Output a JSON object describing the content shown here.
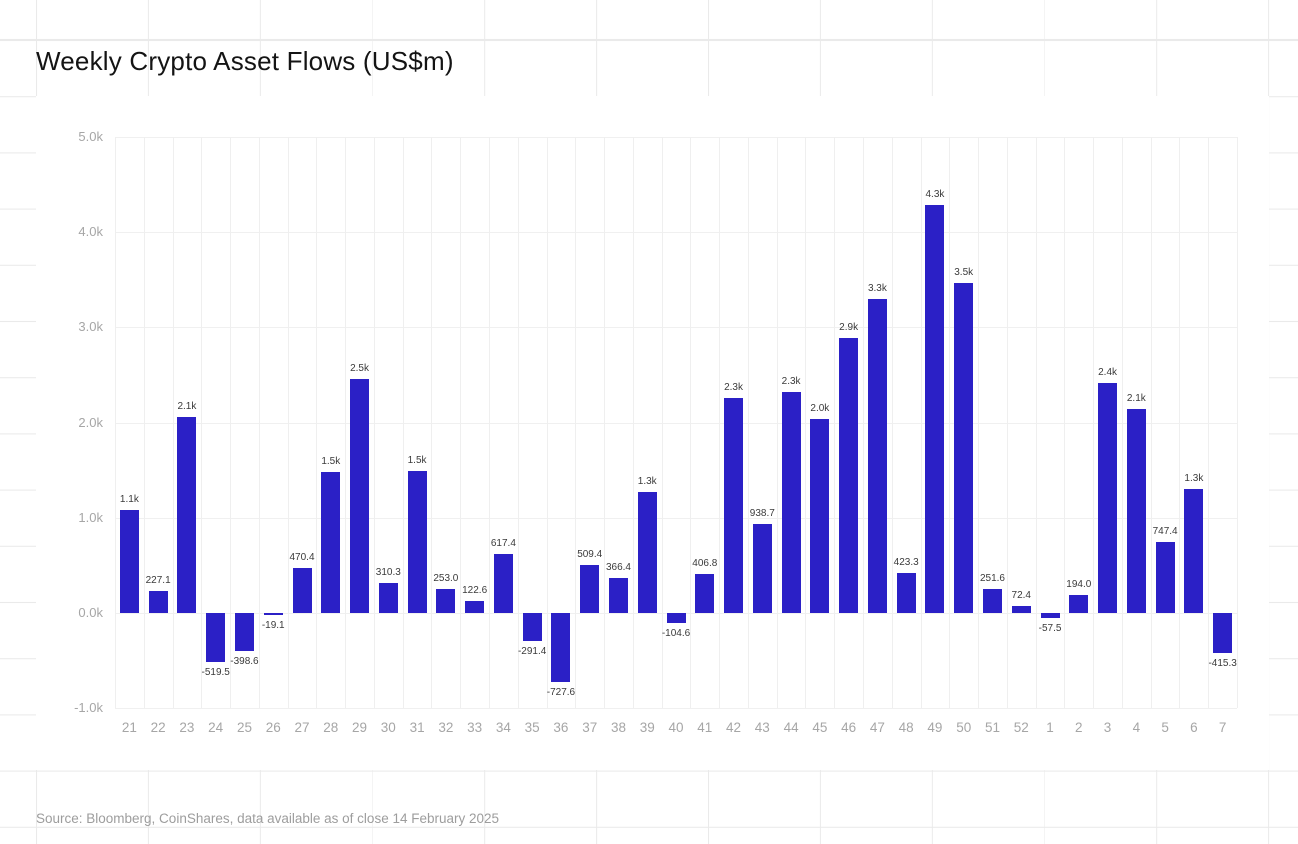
{
  "header": {
    "title": "Weekly Crypto Asset Flows (US$m)"
  },
  "footer": {
    "source": "Source: Bloomberg, CoinShares, data available as of close 14 February 2025"
  },
  "chart_data": {
    "type": "bar",
    "title": "Weekly Crypto Asset Flows (US$m)",
    "xlabel": "",
    "ylabel": "",
    "ylim": [
      -1000,
      5000
    ],
    "grid": true,
    "legend_position": "none",
    "bar_color": "#2b20c6",
    "categories": [
      "21",
      "22",
      "23",
      "24",
      "25",
      "26",
      "27",
      "28",
      "29",
      "30",
      "31",
      "32",
      "33",
      "34",
      "35",
      "36",
      "37",
      "38",
      "39",
      "40",
      "41",
      "42",
      "43",
      "44",
      "45",
      "46",
      "47",
      "48",
      "49",
      "50",
      "51",
      "52",
      "1",
      "2",
      "3",
      "4",
      "5",
      "6",
      "7"
    ],
    "values": [
      1080,
      227.1,
      2060,
      -519.5,
      -398.6,
      -19.1,
      470.4,
      1480,
      2460,
      310.3,
      1490,
      253.0,
      122.6,
      617.4,
      -291.4,
      -727.6,
      509.4,
      366.4,
      1270,
      -104.6,
      406.8,
      2260,
      938.7,
      2320,
      2040,
      2890,
      3300,
      423.3,
      4290,
      3470,
      251.6,
      72.4,
      -57.5,
      194.0,
      2420,
      2140,
      747.4,
      1300,
      -415.3
    ],
    "bar_labels": [
      "1.1k",
      "227.1",
      "2.1k",
      "-519.5",
      "-398.6",
      "-19.1",
      "470.4",
      "1.5k",
      "2.5k",
      "310.3",
      "1.5k",
      "253.0",
      "122.6",
      "617.4",
      "-291.4",
      "-727.6",
      "509.4",
      "366.4",
      "1.3k",
      "-104.6",
      "406.8",
      "2.3k",
      "938.7",
      "2.3k",
      "2.0k",
      "2.9k",
      "3.3k",
      "423.3",
      "4.3k",
      "3.5k",
      "251.6",
      "72.4",
      "-57.5",
      "194.0",
      "2.4k",
      "2.1k",
      "747.4",
      "1.3k",
      "-415.3"
    ],
    "yticks": [
      {
        "value": 5000,
        "label": "5.0k"
      },
      {
        "value": 4000,
        "label": "4.0k"
      },
      {
        "value": 3000,
        "label": "3.0k"
      },
      {
        "value": 2000,
        "label": "2.0k"
      },
      {
        "value": 1000,
        "label": "1.0k"
      },
      {
        "value": 0,
        "label": "0.0k"
      },
      {
        "value": -1000,
        "label": "-1.0k"
      }
    ]
  }
}
